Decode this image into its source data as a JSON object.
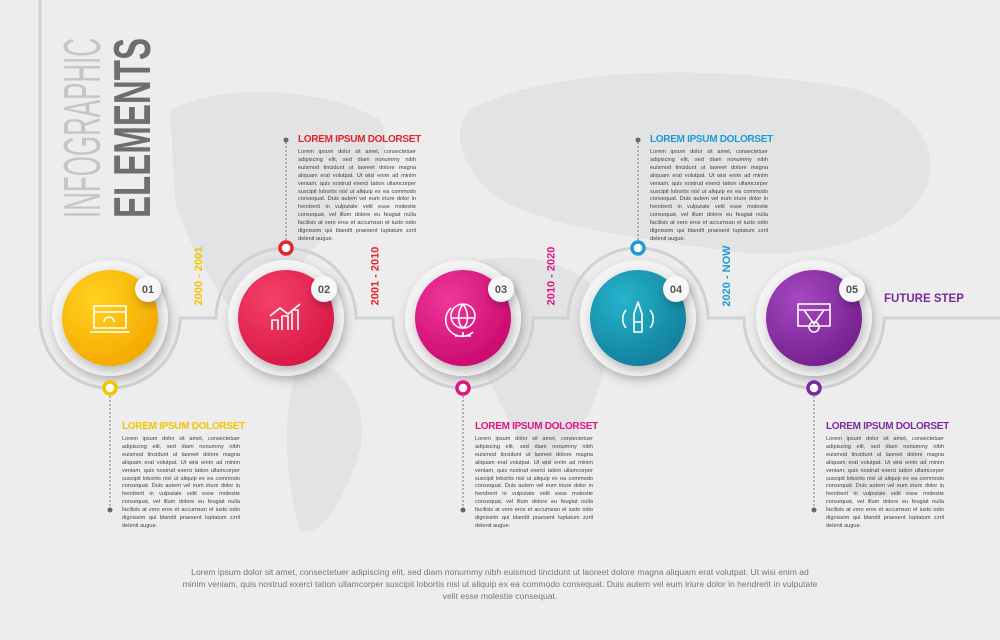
{
  "title": {
    "line1": "INFOGRAPHIC",
    "line2": "ELEMENTS"
  },
  "steps": [
    {
      "number": "01",
      "heading": "LOREM IPSUM DOLORSET",
      "text": "Lorem ipsum dolor sit amet, consectetuer adipiscing elit, sed diam nonummy nibh euismod tincidunt ut laoreet dolore magna aliquam erat volutpat. Ut wisi enim ad minim veniam, quis nostrud exerci tation ullamcorper suscipit lobortis nisl ut aliquip ex ea commodo consequat. Duis autem vel eum iriure dolor in hendrerit in vulputate velit esse molestie consequat, vel illum dolore eu feugiat nulla facilisis at vero eros et accumsan et iusto odio dignissim qui blandit praesent luptatum zzril delenit augue."
    },
    {
      "number": "02",
      "heading": "LOREM IPSUM DOLORSET",
      "text": "Lorem ipsum dolor sit amet, consectetuer adipiscing elit, sed diam nonummy nibh euismod tincidunt ut laoreet dolore magna aliquam erat volutpat. Ut wisi enim ad minim veniam, quis nostrud exerci tation ullamcorper suscipit lobortis nisl ut aliquip ex ea commodo consequat. Duis autem vel eum iriure dolor in hendrerit in vulputate velit esse molestie consequat, vel illum dolore eu feugiat nulla facilisis at vero eros et accumsan et iusto odio dignissim qui blandit praesent luptatum zzril delenit augue."
    },
    {
      "number": "03",
      "heading": "LOREM IPSUM DOLORSET",
      "text": "Lorem ipsum dolor sit amet, consectetuer adipiscing elit, sed diam nonummy nibh euismod tincidunt ut laoreet dolore magna aliquam erat volutpat. Ut wisi enim ad minim veniam, quis nostrud exerci tation ullamcorper suscipit lobortis nisl ut aliquip ex ea commodo consequat. Duis autem vel eum iriure dolor in hendrerit in vulputate velit esse molestie consequat, vel illum dolore eu feugiat nulla facilisis at vero eros et accumsan et iusto odio dignissim qui blandit praesent luptatum zzril delenit augue."
    },
    {
      "number": "04",
      "heading": "LOREM IPSUM DOLORSET",
      "text": "Lorem ipsum dolor sit amet, consectetuer adipiscing elit, sed diam nonummy nibh euismod tincidunt ut laoreet dolore magna aliquam erat volutpat. Ut wisi enim ad minim veniam, quis nostrud exerci tation ullamcorper suscipit lobortis nisl ut aliquip ex ea commodo consequat. Duis autem vel eum iriure dolor in hendrerit in vulputate velit esse molestie consequat, vel illum dolore eu feugiat nulla facilisis at vero eros et accumsan et iusto odio dignissim qui blandit praesent luptatum zzril delenit augue."
    },
    {
      "number": "05",
      "heading": "LOREM IPSUM DOLORSET",
      "text": "Lorem ipsum dolor sit amet, consectetuer adipiscing elit, sed diam nonummy nibh euismod tincidunt ut laoreet dolore magna aliquam erat volutpat. Ut wisi enim ad minim veniam, quis nostrud exerci tation ullamcorper suscipit lobortis nisl ut aliquip ex ea commodo consequat. Duis autem vel eum iriure dolor in hendrerit in vulputate velit esse molestie consequat, vel illum dolore eu feugiat nulla facilisis at vero eros et accumsan et iusto odio dignissim qui blandit praesent luptatum zzril delenit augue."
    }
  ],
  "periods": [
    "2000 - 2001",
    "2001 - 2010",
    "2010 - 2020",
    "2020 - NOW",
    "FUTURE STEP"
  ],
  "footer": "Lorem ipsum dolor sit amet, consectetuer adipiscing elit, sed diam nonummy nibh euismod tincidunt ut laoreet dolore magna aliquam erat volutpat. Ut wisi enim ad minim veniam, quis nostrud exerci tation ullamcorper suscipit lobortis nisl ut aliquip ex ea commodo consequat. Duis autem vel eum iriure dolor in hendrerit in vulputate velit esse molestie consequat."
}
